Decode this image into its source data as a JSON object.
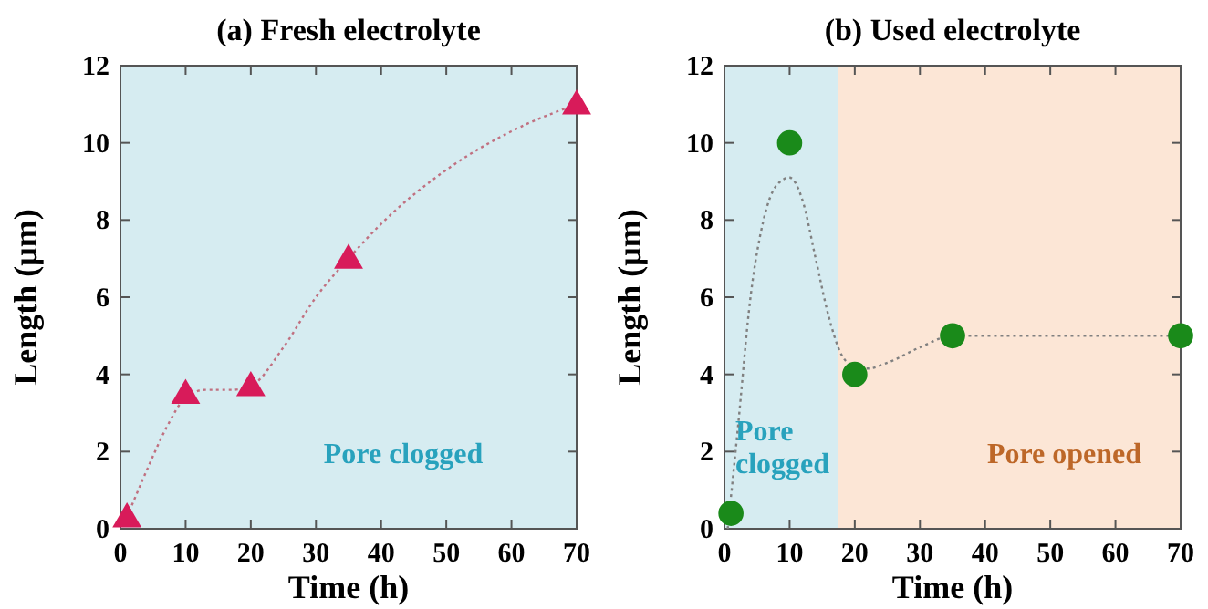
{
  "chart_data": [
    {
      "type": "scatter",
      "title": "(a) Fresh electrolyte",
      "xlabel": "Time (h)",
      "ylabel": "Length (μm)",
      "xlim": [
        0,
        70
      ],
      "ylim": [
        0,
        12
      ],
      "xticks": [
        0,
        10,
        20,
        30,
        40,
        50,
        60,
        70
      ],
      "yticks": [
        0,
        2,
        4,
        6,
        8,
        10,
        12
      ],
      "grid": false,
      "bands": [
        {
          "axis": "x",
          "from": 0,
          "to": 70,
          "label": "Pore clogged",
          "color": "#d6ecf1"
        }
      ],
      "series": [
        {
          "type": "line",
          "line_style": "dotted",
          "marker": "none",
          "color": "#c07080",
          "x": [
            1,
            4,
            7,
            10,
            13,
            17,
            20,
            25,
            30,
            35,
            40,
            50,
            60,
            70
          ],
          "values": [
            0.3,
            1.5,
            2.6,
            3.4,
            3.6,
            3.6,
            3.7,
            4.7,
            6,
            7,
            7.9,
            9.3,
            10.3,
            11
          ]
        },
        {
          "marker": "triangle",
          "color": "#d81b5a",
          "x": [
            1,
            10,
            20,
            35,
            70
          ],
          "values": [
            0.3,
            3.5,
            3.7,
            7,
            11
          ]
        }
      ]
    },
    {
      "type": "scatter",
      "title": "(b) Used electrolyte",
      "xlabel": "Time (h)",
      "ylabel": "Length (μm)",
      "xlim": [
        0,
        70
      ],
      "ylim": [
        0,
        12
      ],
      "xticks": [
        0,
        10,
        20,
        30,
        40,
        50,
        60,
        70
      ],
      "yticks": [
        0,
        2,
        4,
        6,
        8,
        10,
        12
      ],
      "grid": false,
      "bands": [
        {
          "axis": "x",
          "from": 0,
          "to": 17.5,
          "label": "Pore clogged",
          "color": "#d6ecf1"
        },
        {
          "axis": "x",
          "from": 17.5,
          "to": 70,
          "label": "Pore opened",
          "color": "#fce6d6"
        }
      ],
      "series": [
        {
          "type": "line",
          "line_style": "dotted",
          "marker": "none",
          "color": "#808080",
          "x": [
            0.5,
            2,
            4,
            6,
            8,
            10,
            12,
            14,
            16,
            18,
            20,
            22,
            25,
            30,
            35,
            40,
            70
          ],
          "values": [
            0,
            2.5,
            6,
            8,
            8.9,
            9.1,
            8.5,
            7,
            5.5,
            4.5,
            4.2,
            4.15,
            4.3,
            4.7,
            5,
            5,
            5
          ]
        },
        {
          "marker": "circle",
          "color": "#1a8a1a",
          "x": [
            1,
            10,
            20,
            35,
            70
          ],
          "values": [
            0.4,
            10,
            4,
            5,
            5
          ]
        }
      ]
    }
  ]
}
